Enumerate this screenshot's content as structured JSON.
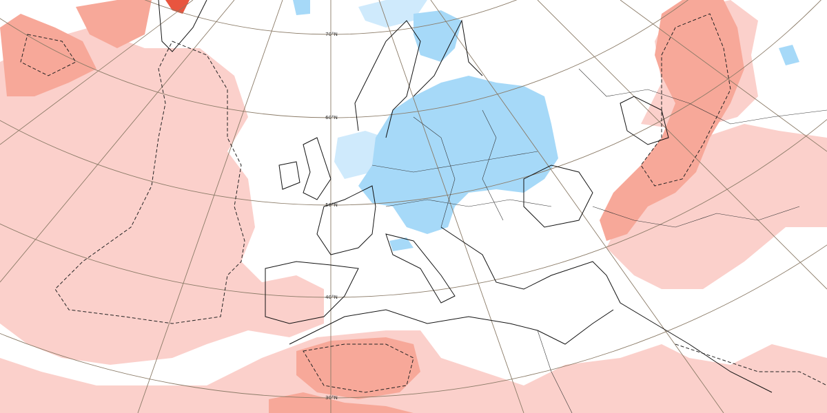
{
  "map": {
    "latitude_labels": [
      "70°N",
      "60°N",
      "50°N",
      "40°N",
      "30°N"
    ]
  }
}
